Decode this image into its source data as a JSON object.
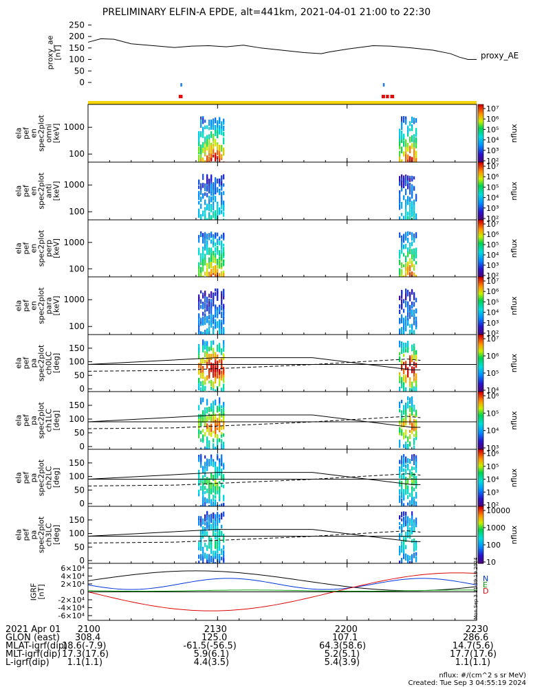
{
  "title": "PRELIMINARY ELFIN-A EPDE, alt=441km, 2021-04-01 21:00 to 22:30",
  "proxy_ae": {
    "ylabel": "proxy_ae\n[nT]",
    "legend": "proxy_AE",
    "yticks": [
      "0",
      "50",
      "100",
      "150",
      "200",
      "250"
    ],
    "ylim": [
      0,
      260
    ],
    "t": [
      0,
      3,
      6,
      10,
      20,
      24,
      28,
      32,
      36,
      40,
      45,
      50,
      54,
      56,
      60,
      66,
      70,
      75,
      80,
      84,
      86,
      88,
      90
    ],
    "values": [
      175,
      190,
      188,
      168,
      152,
      158,
      160,
      155,
      162,
      150,
      140,
      130,
      125,
      133,
      145,
      160,
      158,
      150,
      140,
      125,
      110,
      100,
      100
    ]
  },
  "indicators": {
    "blue_bars": [
      [
        21.4,
        21.8
      ],
      [
        68.3,
        68.7
      ]
    ],
    "red_bars": [
      [
        21.0,
        21.9
      ],
      [
        68.0,
        68.8
      ],
      [
        69.0,
        69.7
      ],
      [
        70.0,
        70.9
      ]
    ],
    "colors": {
      "blue": "#1a7ff0",
      "red": "#e01010",
      "yellow": "#f5d50a"
    }
  },
  "energy_panels": [
    {
      "ylabel": "ela\npef\nen\nspec2plot\nomni\n[keV]",
      "yticks": [
        "100",
        "1000"
      ],
      "cbar_ticks": [
        "10⁷",
        "10⁶",
        "10⁵",
        "10⁴",
        "10³",
        "10²"
      ],
      "cbar_label": "nflux",
      "intensity": 1.0
    },
    {
      "ylabel": "ela\npef\nen\nspec2plot\nanti\n[keV]",
      "yticks": [
        "100",
        "1000"
      ],
      "cbar_ticks": [
        "10⁷",
        "10⁶",
        "10⁵",
        "10⁴",
        "10³",
        "10²"
      ],
      "cbar_label": "nflux",
      "intensity": 0.45
    },
    {
      "ylabel": "ela\npef\nen\nspec2plot\nperp\n[keV]",
      "yticks": [
        "100",
        "1000"
      ],
      "cbar_ticks": [
        "10⁷",
        "10⁶",
        "10⁵",
        "10⁴",
        "10³",
        "10²"
      ],
      "cbar_label": "nflux",
      "intensity": 0.9
    },
    {
      "ylabel": "ela\npef\nen\nspec2plot\npara\n[keV]",
      "yticks": [
        "100",
        "1000"
      ],
      "cbar_ticks": [
        "10⁷",
        "10⁶",
        "10⁵",
        "10⁴",
        "10³",
        "10²"
      ],
      "cbar_label": "nflux",
      "intensity": 0.35
    }
  ],
  "pa_panels": [
    {
      "ylabel": "ela\npef\npa\nspec2plot\nch0LC\n[deg]",
      "yticks": [
        "0",
        "50",
        "100",
        "150"
      ],
      "cbar_ticks": [
        "10⁷",
        "10⁶",
        "10⁵",
        "10⁴"
      ],
      "cbar_label": "nflux",
      "intensity": 1.0
    },
    {
      "ylabel": "ela\npef\npa\nspec2plot\nch1LC\n[deg]",
      "yticks": [
        "0",
        "50",
        "100",
        "150"
      ],
      "cbar_ticks": [
        "10⁶",
        "10⁵",
        "10⁴",
        "10³"
      ],
      "cbar_label": "nflux",
      "intensity": 0.8
    },
    {
      "ylabel": "ela\npef\npa\nspec2plot\nch2LC\n[deg]",
      "yticks": [
        "0",
        "50",
        "100",
        "150"
      ],
      "cbar_ticks": [
        "10⁶",
        "10⁵",
        "10⁴",
        "10³",
        "10²"
      ],
      "cbar_label": "nflux",
      "intensity": 0.55
    },
    {
      "ylabel": "ela\npef\npa\nspec2plot\nch3LC\n[deg]",
      "yticks": [
        "0",
        "50",
        "100",
        "150"
      ],
      "cbar_ticks": [
        "10000",
        "1000",
        "100",
        "10"
      ],
      "cbar_label": "nflux",
      "intensity": 0.45
    }
  ],
  "igrf": {
    "ylabel": "IGRF\n[nT]",
    "yticks": [
      "-6×10⁴",
      "-4×10⁴",
      "-2×10⁴",
      "0",
      "2×10⁴",
      "4×10⁴",
      "6×10⁴"
    ],
    "ylim": [
      -65000,
      65000
    ],
    "legend": [
      "N",
      "E",
      "D"
    ],
    "colors": {
      "N": "#0033dd",
      "E": "#009900",
      "D": "#dd0000",
      "total": "#000000"
    },
    "side_text": "Mon Sep  3 21:39:19 2024"
  },
  "x_ticks": [
    "2100",
    "2130",
    "2200",
    "2230"
  ],
  "footer": {
    "rows": [
      {
        "label": "2021 Apr 01",
        "vals": [
          "2100",
          "2130",
          "2200",
          "2230"
        ]
      },
      {
        "label": "GLON (east)",
        "vals": [
          "308.4",
          "125.0",
          "107.1",
          "286.6"
        ]
      },
      {
        "label": "MLAT-igrf(dip)",
        "vals": [
          "18.6(-7.9)",
          "-61.5(-56.5)",
          "64.3(58.6)",
          "14.7(5.6)"
        ]
      },
      {
        "label": "MLT-igrf(dip)",
        "vals": [
          "17.3(17.6)",
          "5.9(6.1)",
          "5.2(5.1)",
          "17.7(17.6)"
        ]
      },
      {
        "label": "L-igrf(dip)",
        "vals": [
          "1.1(1.1)",
          "4.4(3.5)",
          "5.4(3.9)",
          "1.1(1.1)"
        ]
      }
    ],
    "units": "nflux: #/(cm^2 s sr MeV)",
    "created": "Created: Tue Sep  3 04:55:19 2024"
  }
}
